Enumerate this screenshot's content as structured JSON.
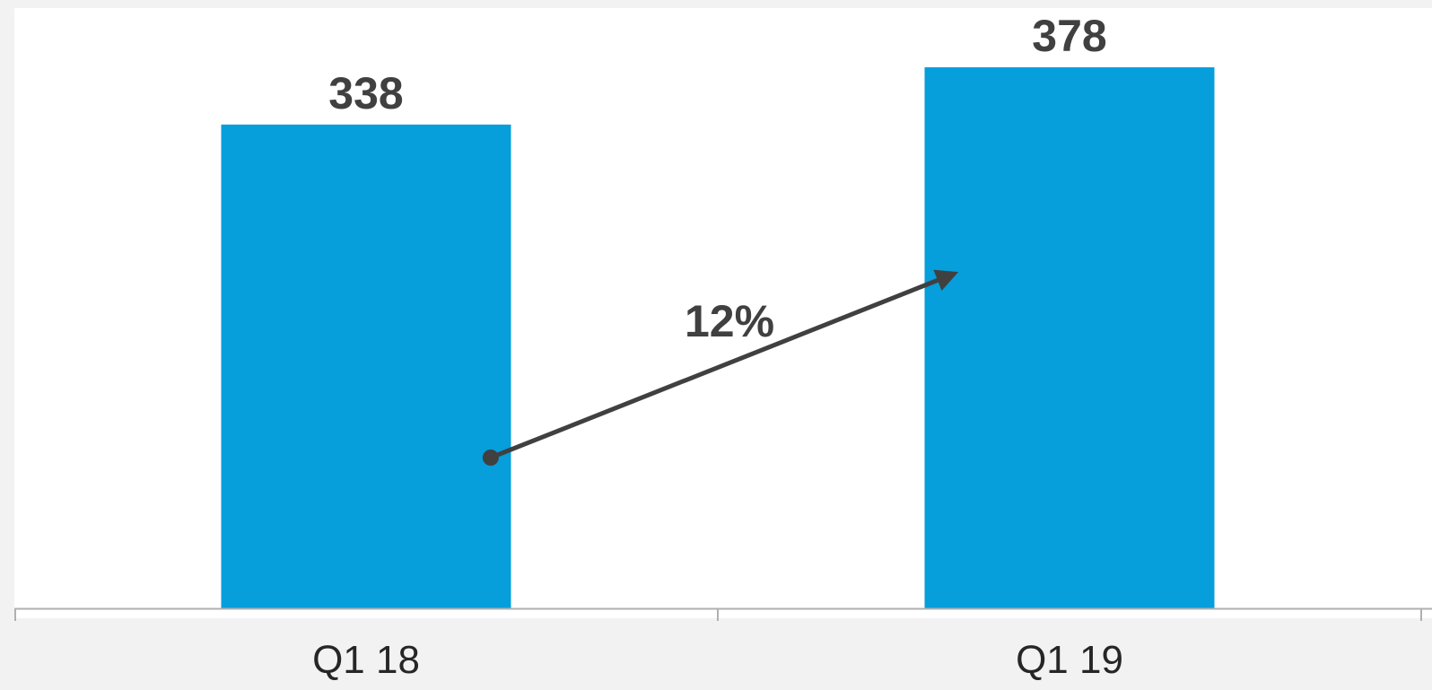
{
  "chart_data": {
    "type": "bar",
    "categories": [
      "Q1 18",
      "Q1 19"
    ],
    "values": [
      338,
      378
    ],
    "value_labels": [
      "338",
      "378"
    ],
    "ylim": [
      0,
      378
    ],
    "grid": false,
    "annotations": [
      {
        "text": "12%",
        "kind": "growth-arrow",
        "from_category": "Q1 18",
        "to_category": "Q1 19"
      }
    ]
  },
  "colors": {
    "bar": "#069edb",
    "plot_background": "#ffffff",
    "page_background": "#f2f2f2",
    "axis": "#b0b0b0",
    "arrow": "#404040",
    "text_dark": "#404040"
  }
}
